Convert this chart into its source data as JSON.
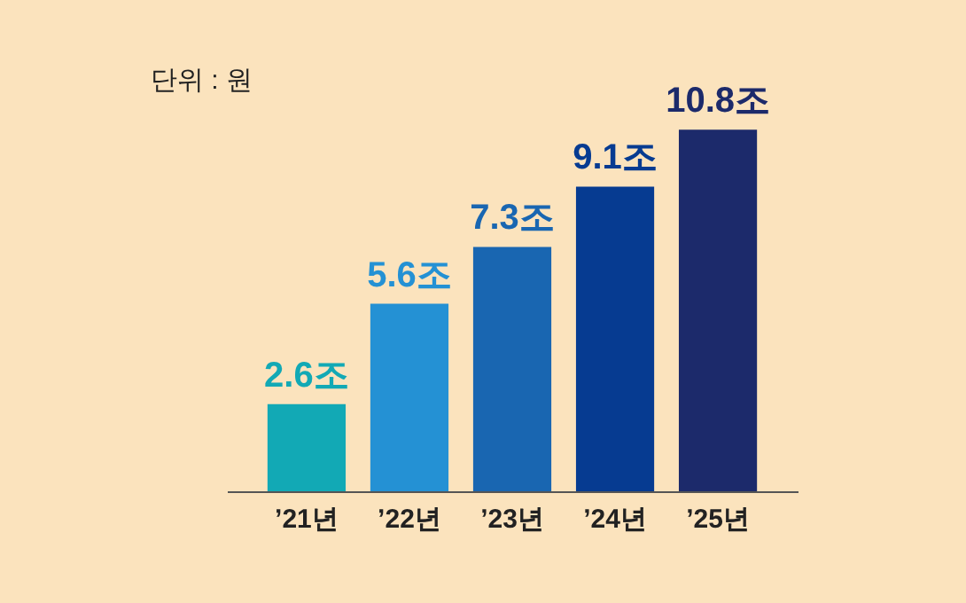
{
  "chart_data": {
    "type": "bar",
    "categories": [
      "’21년",
      "’22년",
      "’23년",
      "’24년",
      "’25년"
    ],
    "values": [
      2.6,
      5.6,
      7.3,
      9.1,
      10.8
    ],
    "colors": [
      "#12a9b5",
      "#2491d4",
      "#1966b1",
      "#063b91",
      "#1c2a6b"
    ],
    "value_labels": [
      "2.6조",
      "5.6조",
      "7.3조",
      "9.1조",
      "10.8조"
    ],
    "annotations": [
      "단위 : 원"
    ]
  }
}
